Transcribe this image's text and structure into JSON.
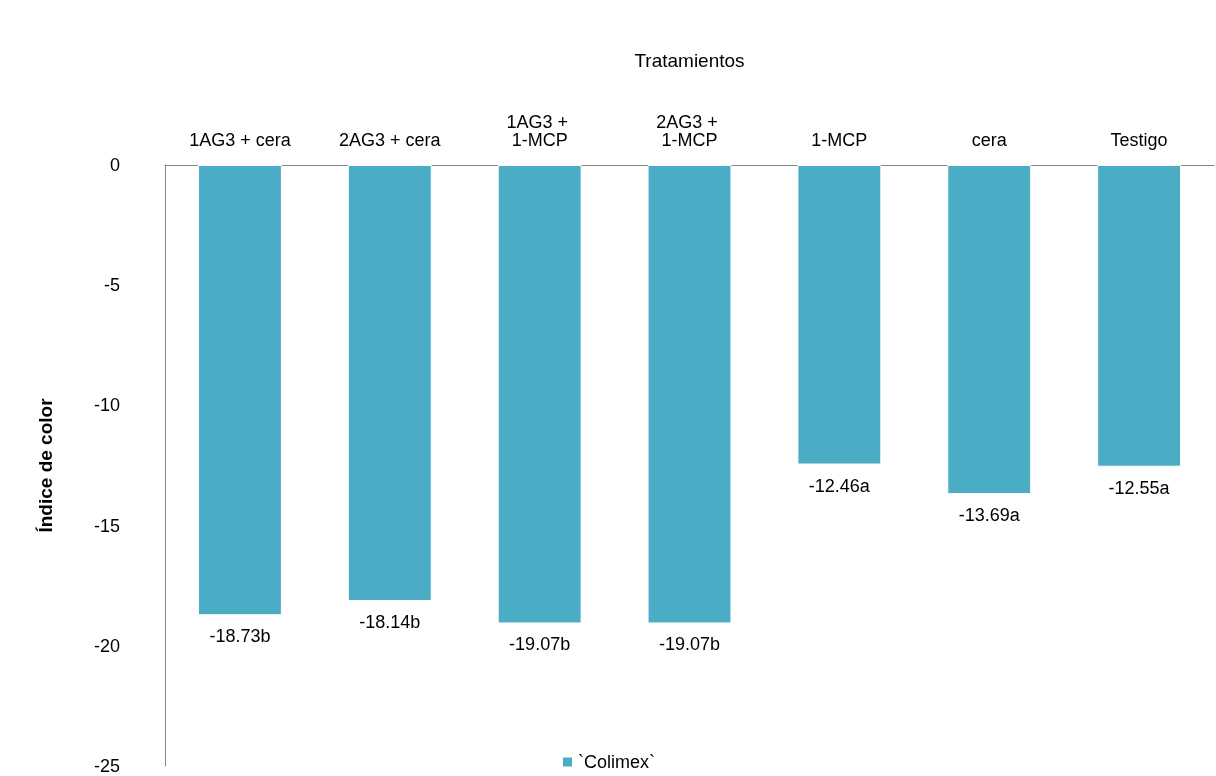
{
  "chart_data": {
    "type": "bar",
    "xlabel": "Tratamientos",
    "ylabel": "Índice de color",
    "categories": [
      "1AG3 + cera",
      "2AG3 + cera",
      "1AG3 + 1-MCP",
      "2AG3 + 1-MCP",
      "1-MCP",
      "cera",
      "Testigo"
    ],
    "series": [
      {
        "name": "`Colimex`",
        "color": "#4bacc6",
        "values": [
          -18.73,
          -18.14,
          -19.07,
          -19.07,
          -12.46,
          -13.69,
          -12.55
        ],
        "value_labels": [
          "-18.73b",
          "-18.14b",
          "-19.07b",
          "-19.07b",
          "-12.46a",
          "-13.69a",
          "-12.55a"
        ]
      }
    ],
    "ylim": [
      -25,
      0
    ],
    "yticks": [
      0,
      -5,
      -10,
      -15,
      -20,
      -25
    ],
    "grid": false,
    "legend": "bottom"
  }
}
